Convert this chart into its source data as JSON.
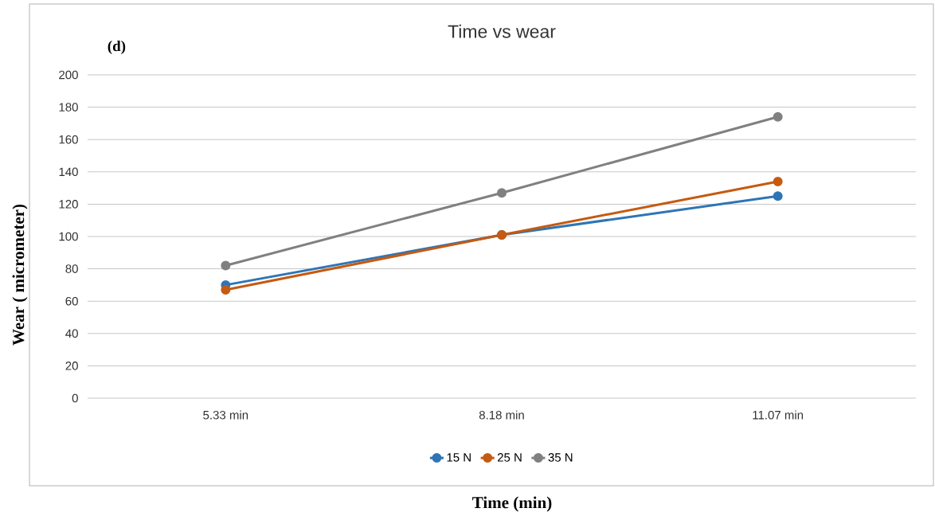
{
  "chart_data": {
    "type": "line",
    "title": "Time vs wear",
    "xlabel": "Time (min)",
    "ylabel": "Wear ( micrometer)",
    "categories": [
      "5.33 min",
      "8.18 min",
      "11.07 min"
    ],
    "series": [
      {
        "name": "15 N",
        "color": "#2e75b6",
        "values": [
          70,
          101,
          125
        ]
      },
      {
        "name": "25 N",
        "color": "#c55a11",
        "values": [
          67,
          101,
          134
        ]
      },
      {
        "name": "35 N",
        "color": "#808080",
        "values": [
          82,
          127,
          174
        ]
      }
    ],
    "ylim": [
      0,
      200
    ],
    "yticks": [
      0,
      20,
      40,
      60,
      80,
      100,
      120,
      140,
      160,
      180,
      200
    ],
    "grid": "y",
    "legend": "bottom",
    "marker": "circle",
    "line_style": "solid",
    "annotations": [
      "(d)"
    ]
  }
}
